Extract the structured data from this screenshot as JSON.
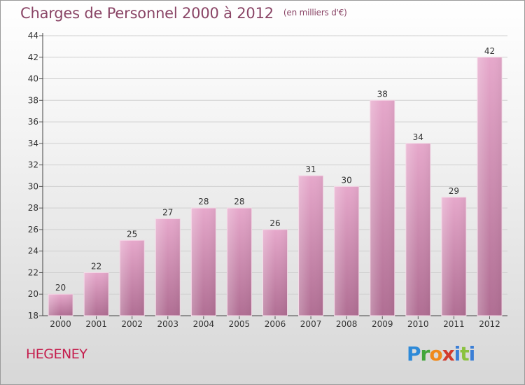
{
  "title": "Charges de Personnel 2000 à 2012",
  "subtitle": "(en milliers d'€)",
  "commune": "HEGENEY",
  "logo": {
    "p": "P",
    "r": "r",
    "o": "o",
    "x": "x",
    "i": "i",
    "t": "t",
    "i2": "i"
  },
  "colors": {
    "bar_top": "#e6a8cb",
    "bar_bottom": "#b06e93",
    "title": "#8a4566",
    "commune": "#c51c4c"
  },
  "chart_data": {
    "type": "bar",
    "categories": [
      "2000",
      "2001",
      "2002",
      "2003",
      "2004",
      "2005",
      "2006",
      "2007",
      "2008",
      "2009",
      "2010",
      "2011",
      "2012"
    ],
    "values": [
      20,
      22,
      25,
      27,
      28,
      28,
      26,
      31,
      30,
      38,
      34,
      29,
      42
    ],
    "ylim": [
      18,
      44
    ],
    "yticks": [
      18,
      20,
      22,
      24,
      26,
      28,
      30,
      32,
      34,
      36,
      38,
      40,
      42,
      44
    ],
    "grid": true,
    "data_labels": true
  }
}
